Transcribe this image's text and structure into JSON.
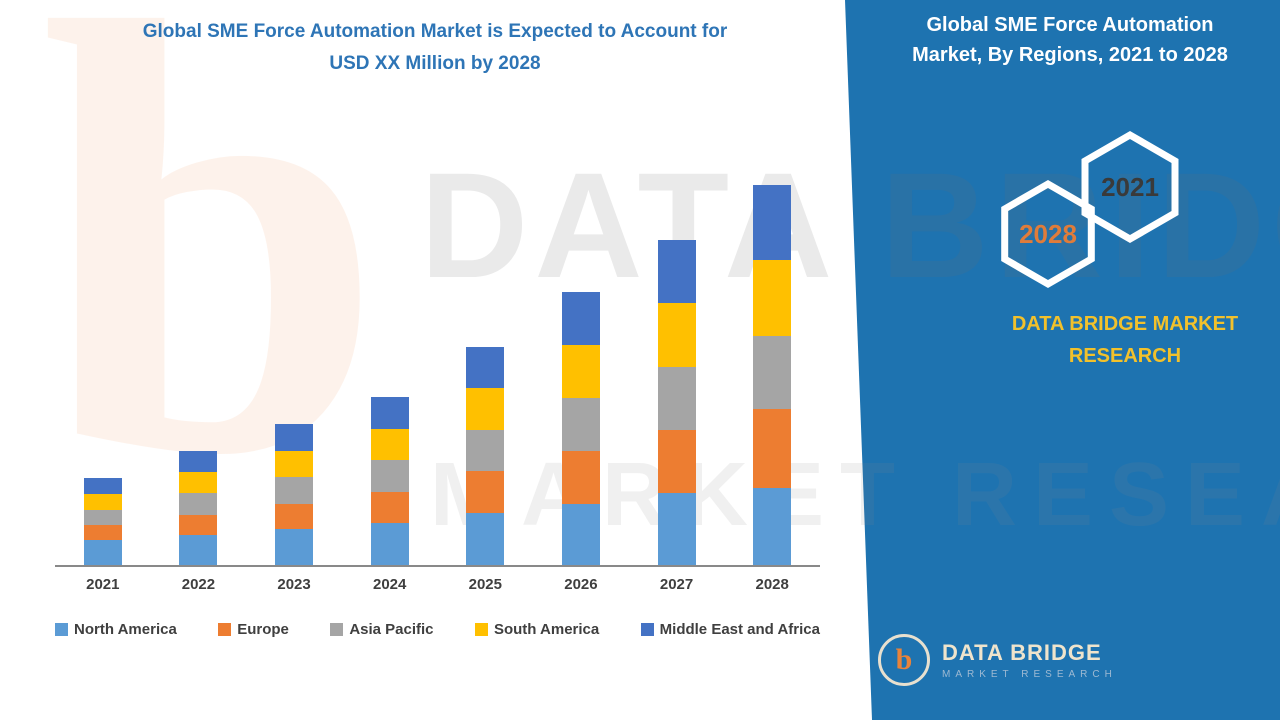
{
  "left_title": {
    "line1": "Global SME Force Automation Market is Expected to Account for",
    "line2": "USD XX Million by 2028"
  },
  "right_panel": {
    "title_line1": "Global SME Force Automation",
    "title_line2": "Market, By Regions, 2021 to 2028",
    "hex_badges": [
      {
        "label": "2028"
      },
      {
        "label": "2021"
      }
    ],
    "brand_line1": "DATA BRIDGE MARKET",
    "brand_line2": "RESEARCH"
  },
  "watermark": {
    "big_text": "DATA BRIDGE",
    "outline_text": "MARKET RESEARCH",
    "letter": "b"
  },
  "logo": {
    "letter": "b",
    "name": "DATA BRIDGE",
    "subtitle": "MARKET RESEARCH"
  },
  "colors": {
    "panel_blue": "#1E73B0",
    "title_blue": "#2E75B6",
    "brand_yellow": "#F2C12B",
    "hex_2028_text": "#E07C3A",
    "hex_2021_text": "#3A3A3A"
  },
  "chart_data": {
    "type": "bar",
    "stacked": true,
    "title": "Global SME Force Automation Market is Expected to Account for USD XX Million by 2028",
    "xlabel": "",
    "ylabel": "",
    "categories": [
      "2021",
      "2022",
      "2023",
      "2024",
      "2025",
      "2026",
      "2027",
      "2028"
    ],
    "series": [
      {
        "name": "North America",
        "color": "#5B9BD5",
        "values": [
          2.6,
          3.2,
          3.8,
          4.4,
          5.5,
          6.5,
          7.6,
          8.2
        ]
      },
      {
        "name": "Europe",
        "color": "#ED7D31",
        "values": [
          1.6,
          2.1,
          2.7,
          3.3,
          4.4,
          5.6,
          6.7,
          8.3
        ]
      },
      {
        "name": "Asia Pacific",
        "color": "#A5A5A5",
        "values": [
          1.6,
          2.3,
          2.8,
          3.4,
          4.4,
          5.6,
          6.7,
          7.7
        ]
      },
      {
        "name": "South America",
        "color": "#FFC000",
        "values": [
          1.7,
          2.2,
          2.8,
          3.3,
          4.4,
          5.6,
          6.7,
          8.1
        ]
      },
      {
        "name": "Middle East and Africa",
        "color": "#4472C4",
        "values": [
          1.7,
          2.3,
          2.8,
          3.4,
          4.4,
          5.6,
          6.7,
          7.9
        ]
      }
    ],
    "ylim": [
      0,
      42
    ],
    "grid": false,
    "legend_position": "bottom",
    "value_note": "values estimated from bar heights; actual figures shown as XX in source"
  }
}
